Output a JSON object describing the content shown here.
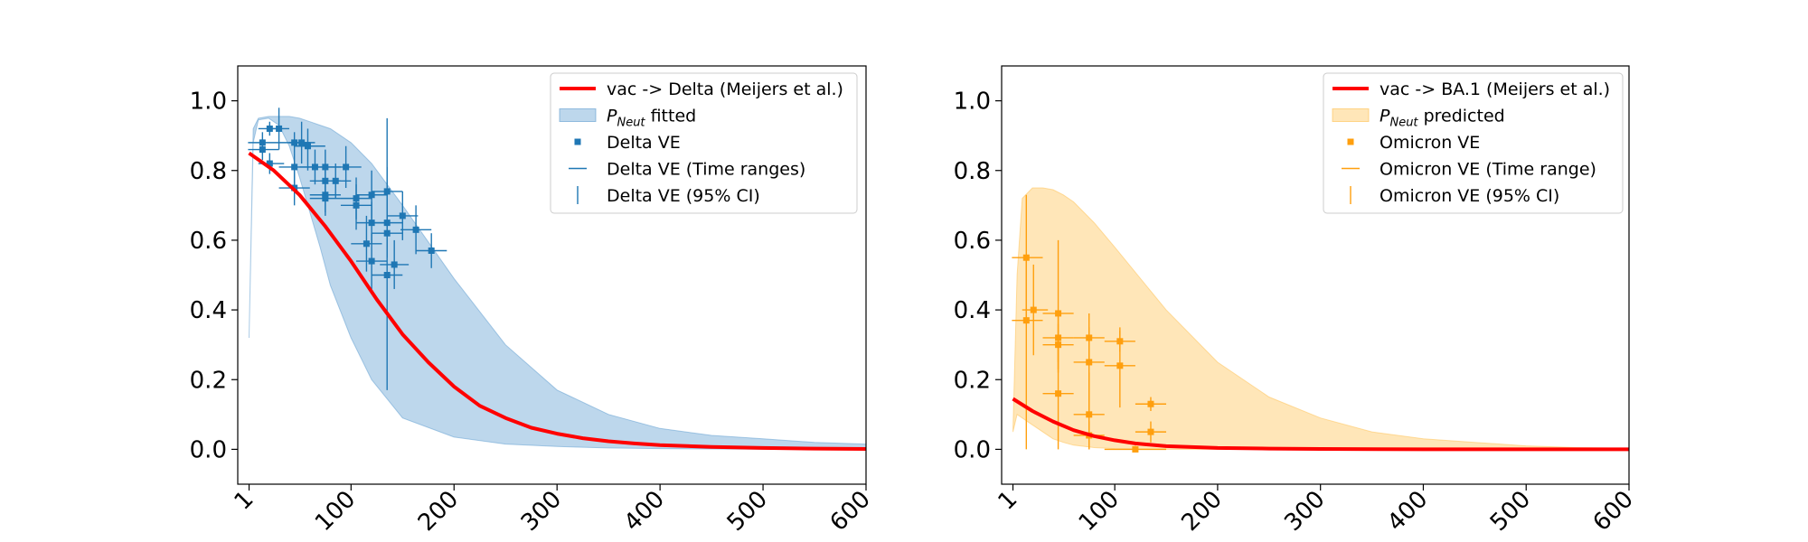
{
  "chart_data": [
    {
      "type": "line",
      "xlim": [
        -10,
        600
      ],
      "ylim": [
        -0.1,
        1.1
      ],
      "x_ticks": [
        1,
        100,
        200,
        300,
        400,
        500,
        600
      ],
      "x_tick_labels": [
        "1",
        "100",
        "200",
        "300",
        "400",
        "500",
        "600"
      ],
      "y_ticks": [
        0.0,
        0.2,
        0.4,
        0.6,
        0.8,
        1.0
      ],
      "y_tick_labels": [
        "0.0",
        "0.2",
        "0.4",
        "0.6",
        "0.8",
        "1.0"
      ],
      "legend_position": "top-right",
      "grid": false,
      "curve": {
        "name": "vac -> Delta (Meijers et al.)",
        "color": "#ff0000",
        "x": [
          1,
          25,
          50,
          75,
          100,
          125,
          150,
          175,
          200,
          225,
          250,
          275,
          300,
          325,
          350,
          375,
          400,
          450,
          500,
          550,
          600
        ],
        "y": [
          0.85,
          0.8,
          0.73,
          0.64,
          0.54,
          0.43,
          0.33,
          0.25,
          0.18,
          0.125,
          0.09,
          0.062,
          0.045,
          0.032,
          0.023,
          0.017,
          0.012,
          0.007,
          0.004,
          0.002,
          0.001
        ]
      },
      "band": {
        "name": "P_Neut fitted",
        "color": "#5b9bcf",
        "x": [
          1,
          5,
          10,
          20,
          30,
          40,
          50,
          60,
          70,
          80,
          100,
          120,
          150,
          200,
          250,
          300,
          350,
          400,
          450,
          500,
          550,
          600
        ],
        "upper": [
          0.32,
          0.92,
          0.95,
          0.955,
          0.955,
          0.955,
          0.95,
          0.94,
          0.93,
          0.92,
          0.88,
          0.82,
          0.7,
          0.49,
          0.3,
          0.17,
          0.1,
          0.06,
          0.04,
          0.03,
          0.02,
          0.015
        ],
        "lower": [
          0.32,
          0.88,
          0.945,
          0.95,
          0.93,
          0.87,
          0.78,
          0.68,
          0.58,
          0.47,
          0.32,
          0.2,
          0.09,
          0.035,
          0.015,
          0.008,
          0.004,
          0.002,
          0.001,
          0.0,
          0.0,
          0.0
        ]
      },
      "points": {
        "name": "Delta VE",
        "range_name": "Delta VE (Time ranges)",
        "ci_name": "Delta VE (95% CI)",
        "color": "#1f77b4",
        "data": [
          {
            "x": 14,
            "y": 0.88,
            "xlo": 0,
            "xhi": 30,
            "ylo": 0.85,
            "yhi": 0.91
          },
          {
            "x": 14,
            "y": 0.86,
            "xlo": 0,
            "xhi": 30,
            "ylo": 0.83,
            "yhi": 0.89
          },
          {
            "x": 21,
            "y": 0.92,
            "xlo": 10,
            "xhi": 30,
            "ylo": 0.9,
            "yhi": 0.94
          },
          {
            "x": 30,
            "y": 0.92,
            "xlo": 20,
            "xhi": 40,
            "ylo": 0.86,
            "yhi": 0.98
          },
          {
            "x": 21,
            "y": 0.82,
            "xlo": 10,
            "xhi": 35,
            "ylo": 0.79,
            "yhi": 0.85
          },
          {
            "x": 45,
            "y": 0.88,
            "xlo": 30,
            "xhi": 60,
            "ylo": 0.85,
            "yhi": 0.91
          },
          {
            "x": 52,
            "y": 0.88,
            "xlo": 40,
            "xhi": 65,
            "ylo": 0.82,
            "yhi": 0.94
          },
          {
            "x": 58,
            "y": 0.87,
            "xlo": 45,
            "xhi": 75,
            "ylo": 0.8,
            "yhi": 0.92
          },
          {
            "x": 45,
            "y": 0.81,
            "xlo": 30,
            "xhi": 60,
            "ylo": 0.76,
            "yhi": 0.85
          },
          {
            "x": 45,
            "y": 0.75,
            "xlo": 30,
            "xhi": 60,
            "ylo": 0.7,
            "yhi": 0.8
          },
          {
            "x": 65,
            "y": 0.81,
            "xlo": 50,
            "xhi": 80,
            "ylo": 0.76,
            "yhi": 0.86
          },
          {
            "x": 75,
            "y": 0.81,
            "xlo": 60,
            "xhi": 90,
            "ylo": 0.76,
            "yhi": 0.86
          },
          {
            "x": 75,
            "y": 0.77,
            "xlo": 60,
            "xhi": 90,
            "ylo": 0.72,
            "yhi": 0.82
          },
          {
            "x": 75,
            "y": 0.73,
            "xlo": 60,
            "xhi": 90,
            "ylo": 0.68,
            "yhi": 0.78
          },
          {
            "x": 75,
            "y": 0.72,
            "xlo": 60,
            "xhi": 90,
            "ylo": 0.67,
            "yhi": 0.77
          },
          {
            "x": 85,
            "y": 0.77,
            "xlo": 70,
            "xhi": 100,
            "ylo": 0.72,
            "yhi": 0.82
          },
          {
            "x": 95,
            "y": 0.81,
            "xlo": 80,
            "xhi": 110,
            "ylo": 0.75,
            "yhi": 0.87
          },
          {
            "x": 105,
            "y": 0.72,
            "xlo": 90,
            "xhi": 120,
            "ylo": 0.66,
            "yhi": 0.78
          },
          {
            "x": 105,
            "y": 0.7,
            "xlo": 90,
            "xhi": 120,
            "ylo": 0.63,
            "yhi": 0.76
          },
          {
            "x": 120,
            "y": 0.73,
            "xlo": 105,
            "xhi": 135,
            "ylo": 0.66,
            "yhi": 0.8
          },
          {
            "x": 115,
            "y": 0.59,
            "xlo": 100,
            "xhi": 130,
            "ylo": 0.51,
            "yhi": 0.67
          },
          {
            "x": 120,
            "y": 0.65,
            "xlo": 105,
            "xhi": 135,
            "ylo": 0.59,
            "yhi": 0.71
          },
          {
            "x": 120,
            "y": 0.54,
            "xlo": 105,
            "xhi": 135,
            "ylo": 0.46,
            "yhi": 0.62
          },
          {
            "x": 135,
            "y": 0.74,
            "xlo": 120,
            "xhi": 150,
            "ylo": 0.67,
            "yhi": 0.81
          },
          {
            "x": 135,
            "y": 0.65,
            "xlo": 120,
            "xhi": 150,
            "ylo": 0.58,
            "yhi": 0.72
          },
          {
            "x": 135,
            "y": 0.62,
            "xlo": 120,
            "xhi": 150,
            "ylo": 0.55,
            "yhi": 0.69
          },
          {
            "x": 135,
            "y": 0.5,
            "xlo": 120,
            "xhi": 150,
            "ylo": 0.17,
            "yhi": 0.95
          },
          {
            "x": 142,
            "y": 0.53,
            "xlo": 128,
            "xhi": 156,
            "ylo": 0.46,
            "yhi": 0.6
          },
          {
            "x": 150,
            "y": 0.67,
            "xlo": 135,
            "xhi": 165,
            "ylo": 0.6,
            "yhi": 0.74
          },
          {
            "x": 163,
            "y": 0.63,
            "xlo": 148,
            "xhi": 178,
            "ylo": 0.56,
            "yhi": 0.7
          },
          {
            "x": 178,
            "y": 0.57,
            "xlo": 163,
            "xhi": 193,
            "ylo": 0.52,
            "yhi": 0.62
          }
        ]
      },
      "legend": [
        {
          "kind": "line",
          "label": "vac -> Delta (Meijers et al.)"
        },
        {
          "kind": "band",
          "label_sym": "P",
          "label_sub": "Neut",
          "label_rest": " fitted"
        },
        {
          "kind": "square",
          "label": "Delta VE"
        },
        {
          "kind": "hbar",
          "label": "Delta VE (Time ranges)"
        },
        {
          "kind": "vbar",
          "label": "Delta VE (95% CI)"
        }
      ]
    },
    {
      "type": "line",
      "xlim": [
        -10,
        600
      ],
      "ylim": [
        -0.1,
        1.1
      ],
      "x_ticks": [
        1,
        100,
        200,
        300,
        400,
        500,
        600
      ],
      "x_tick_labels": [
        "1",
        "100",
        "200",
        "300",
        "400",
        "500",
        "600"
      ],
      "y_ticks": [
        0.0,
        0.2,
        0.4,
        0.6,
        0.8,
        1.0
      ],
      "y_tick_labels": [
        "0.0",
        "0.2",
        "0.4",
        "0.6",
        "0.8",
        "1.0"
      ],
      "legend_position": "top-right",
      "grid": false,
      "curve": {
        "name": "vac -> BA.1 (Meijers et al.)",
        "color": "#ff0000",
        "x": [
          1,
          20,
          40,
          60,
          80,
          100,
          120,
          150,
          200,
          250,
          300,
          400,
          500,
          600
        ],
        "y": [
          0.145,
          0.11,
          0.08,
          0.055,
          0.038,
          0.026,
          0.017,
          0.009,
          0.004,
          0.002,
          0.001,
          0.0,
          0.0,
          0.0
        ]
      },
      "band": {
        "name": "P_Neut predicted",
        "color": "#ffc04d",
        "x": [
          1,
          5,
          10,
          20,
          30,
          40,
          50,
          60,
          80,
          100,
          150,
          200,
          250,
          300,
          350,
          400,
          450,
          500,
          550,
          600
        ],
        "upper": [
          0.05,
          0.5,
          0.72,
          0.75,
          0.75,
          0.745,
          0.73,
          0.71,
          0.65,
          0.58,
          0.4,
          0.25,
          0.15,
          0.09,
          0.05,
          0.03,
          0.02,
          0.01,
          0.005,
          0.003
        ],
        "lower": [
          0.05,
          0.1,
          0.09,
          0.07,
          0.05,
          0.03,
          0.02,
          0.012,
          0.005,
          0.002,
          0.0,
          0.0,
          0.0,
          0.0,
          0.0,
          0.0,
          0.0,
          0.0,
          0.0,
          0.0
        ]
      },
      "points": {
        "name": "Omicron VE",
        "range_name": "Omicron VE (Time range)",
        "ci_name": "Omicron VE (95% CI)",
        "color": "#ff9f0e",
        "data": [
          {
            "x": 14,
            "y": 0.55,
            "xlo": 0,
            "xhi": 30,
            "ylo": 0.36,
            "yhi": 0.73
          },
          {
            "x": 14,
            "y": 0.37,
            "xlo": 0,
            "xhi": 30,
            "ylo": 0.0,
            "yhi": 0.55
          },
          {
            "x": 21,
            "y": 0.4,
            "xlo": 10,
            "xhi": 35,
            "ylo": 0.27,
            "yhi": 0.53
          },
          {
            "x": 45,
            "y": 0.39,
            "xlo": 30,
            "xhi": 60,
            "ylo": 0.22,
            "yhi": 0.6
          },
          {
            "x": 45,
            "y": 0.32,
            "xlo": 30,
            "xhi": 60,
            "ylo": 0.25,
            "yhi": 0.38
          },
          {
            "x": 45,
            "y": 0.3,
            "xlo": 30,
            "xhi": 60,
            "ylo": 0.23,
            "yhi": 0.36
          },
          {
            "x": 45,
            "y": 0.16,
            "xlo": 30,
            "xhi": 60,
            "ylo": 0.0,
            "yhi": 0.32
          },
          {
            "x": 75,
            "y": 0.32,
            "xlo": 60,
            "xhi": 90,
            "ylo": 0.25,
            "yhi": 0.39
          },
          {
            "x": 75,
            "y": 0.25,
            "xlo": 60,
            "xhi": 90,
            "ylo": 0.1,
            "yhi": 0.35
          },
          {
            "x": 75,
            "y": 0.1,
            "xlo": 60,
            "xhi": 90,
            "ylo": 0.0,
            "yhi": 0.22
          },
          {
            "x": 75,
            "y": 0.04,
            "xlo": 60,
            "xhi": 90,
            "ylo": 0.0,
            "yhi": 0.08
          },
          {
            "x": 105,
            "y": 0.31,
            "xlo": 90,
            "xhi": 120,
            "ylo": 0.28,
            "yhi": 0.35
          },
          {
            "x": 105,
            "y": 0.24,
            "xlo": 90,
            "xhi": 120,
            "ylo": 0.12,
            "yhi": 0.34
          },
          {
            "x": 120,
            "y": 0.0,
            "xlo": 90,
            "xhi": 150,
            "ylo": 0.0,
            "yhi": 0.01
          },
          {
            "x": 135,
            "y": 0.13,
            "xlo": 120,
            "xhi": 150,
            "ylo": 0.11,
            "yhi": 0.15
          },
          {
            "x": 135,
            "y": 0.05,
            "xlo": 120,
            "xhi": 150,
            "ylo": 0.02,
            "yhi": 0.08
          }
        ]
      },
      "legend": [
        {
          "kind": "line",
          "label": "vac -> BA.1 (Meijers et al.)"
        },
        {
          "kind": "band",
          "label_sym": "P",
          "label_sub": "Neut",
          "label_rest": " predicted"
        },
        {
          "kind": "square",
          "label": "Omicron VE"
        },
        {
          "kind": "hbar",
          "label": "Omicron VE (Time range)"
        },
        {
          "kind": "vbar",
          "label": "Omicron VE (95% CI)"
        }
      ]
    }
  ]
}
